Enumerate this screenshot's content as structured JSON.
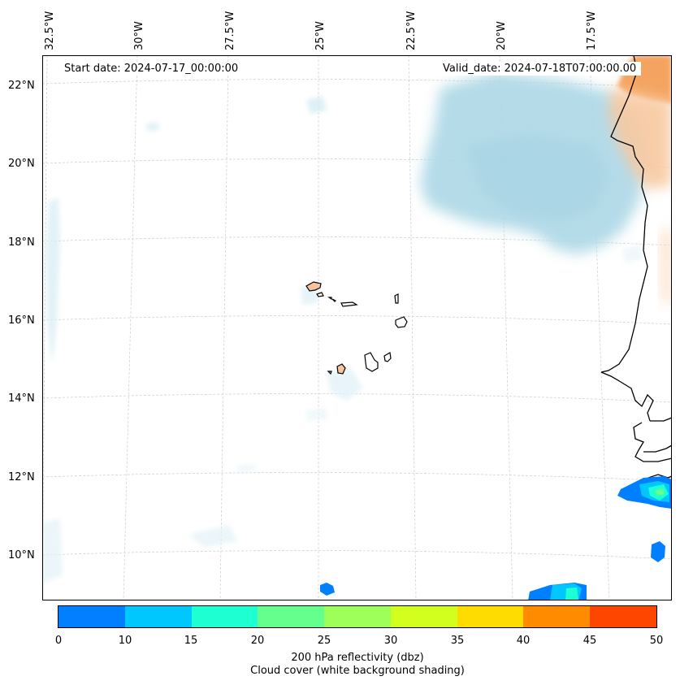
{
  "map": {
    "lon_labels": [
      "32.5°W",
      "30°W",
      "27.5°W",
      "25°W",
      "22.5°W",
      "20°W",
      "17.5°W"
    ],
    "lat_labels": [
      "22°N",
      "20°N",
      "18°N",
      "16°N",
      "14°N",
      "12°N",
      "10°N"
    ],
    "start_date": "Start date: 2024-07-17_00:00:00",
    "valid_date": "Valid_date: 2024-07-18T07:00:00.00"
  },
  "colorbar": {
    "ticks": [
      "0",
      "10",
      "15",
      "20",
      "25",
      "30",
      "35",
      "40",
      "45",
      "50"
    ],
    "colors": [
      "#0080ff",
      "#00c8ff",
      "#1effd2",
      "#64ff8c",
      "#9eff5a",
      "#d2ff1e",
      "#ffdc00",
      "#ff8c00",
      "#ff4600"
    ],
    "title": "200 hPa reflectivity (dbz)",
    "subtitle": "Cloud cover (white background shading)"
  },
  "colors": {
    "cloud": "#a8d8e6",
    "land_shading": "#f4a460",
    "coast": "#000000",
    "grid": "#cccccc"
  }
}
